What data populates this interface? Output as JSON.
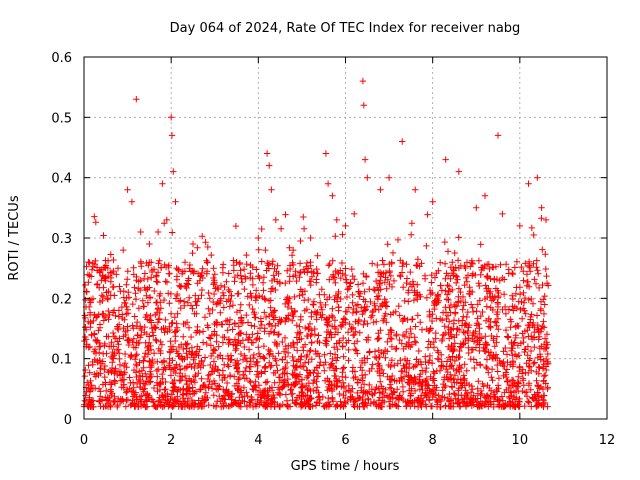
{
  "chart_data": {
    "type": "scatter",
    "title": "Day 064 of 2024, Rate Of TEC Index for receiver nabg",
    "xlabel": "GPS time / hours",
    "ylabel": "ROTI / TECUs",
    "xlim": [
      0,
      12
    ],
    "ylim": [
      0,
      0.6
    ],
    "xticks": [
      "0",
      "2",
      "4",
      "6",
      "8",
      "10",
      "12"
    ],
    "yticks": [
      "0",
      "0.1",
      "0.2",
      "0.3",
      "0.4",
      "0.5",
      "0.6"
    ],
    "grid": true,
    "marker": "plus",
    "color": "#ff0000",
    "data_span_hours": [
      0,
      10.65
    ],
    "typical_range": [
      0.02,
      0.2
    ],
    "points": [
      [
        0.05,
        0.12
      ],
      [
        0.1,
        0.26
      ],
      [
        0.2,
        0.09
      ],
      [
        0.3,
        0.17
      ],
      [
        0.4,
        0.23
      ],
      [
        0.6,
        0.08
      ],
      [
        0.8,
        0.18
      ],
      [
        0.9,
        0.28
      ],
      [
        1.0,
        0.38
      ],
      [
        1.1,
        0.36
      ],
      [
        1.2,
        0.53
      ],
      [
        1.3,
        0.31
      ],
      [
        1.5,
        0.29
      ],
      [
        1.7,
        0.31
      ],
      [
        1.8,
        0.39
      ],
      [
        1.9,
        0.33
      ],
      [
        2.0,
        0.5
      ],
      [
        2.02,
        0.47
      ],
      [
        2.05,
        0.41
      ],
      [
        2.1,
        0.36
      ],
      [
        2.5,
        0.29
      ],
      [
        3.0,
        0.24
      ],
      [
        3.5,
        0.26
      ],
      [
        4.0,
        0.3
      ],
      [
        4.2,
        0.44
      ],
      [
        4.25,
        0.42
      ],
      [
        4.3,
        0.38
      ],
      [
        4.4,
        0.33
      ],
      [
        4.8,
        0.28
      ],
      [
        5.2,
        0.3
      ],
      [
        5.55,
        0.44
      ],
      [
        5.6,
        0.39
      ],
      [
        5.7,
        0.37
      ],
      [
        5.8,
        0.33
      ],
      [
        6.0,
        0.32
      ],
      [
        6.2,
        0.34
      ],
      [
        6.4,
        0.56
      ],
      [
        6.42,
        0.52
      ],
      [
        6.45,
        0.43
      ],
      [
        6.5,
        0.4
      ],
      [
        6.8,
        0.38
      ],
      [
        7.0,
        0.4
      ],
      [
        7.3,
        0.46
      ],
      [
        7.6,
        0.38
      ],
      [
        8.0,
        0.36
      ],
      [
        8.3,
        0.43
      ],
      [
        8.6,
        0.41
      ],
      [
        9.0,
        0.35
      ],
      [
        9.2,
        0.37
      ],
      [
        9.5,
        0.47
      ],
      [
        9.6,
        0.34
      ],
      [
        10.0,
        0.32
      ],
      [
        10.2,
        0.39
      ],
      [
        10.4,
        0.4
      ],
      [
        10.5,
        0.35
      ],
      [
        10.6,
        0.33
      ]
    ]
  }
}
